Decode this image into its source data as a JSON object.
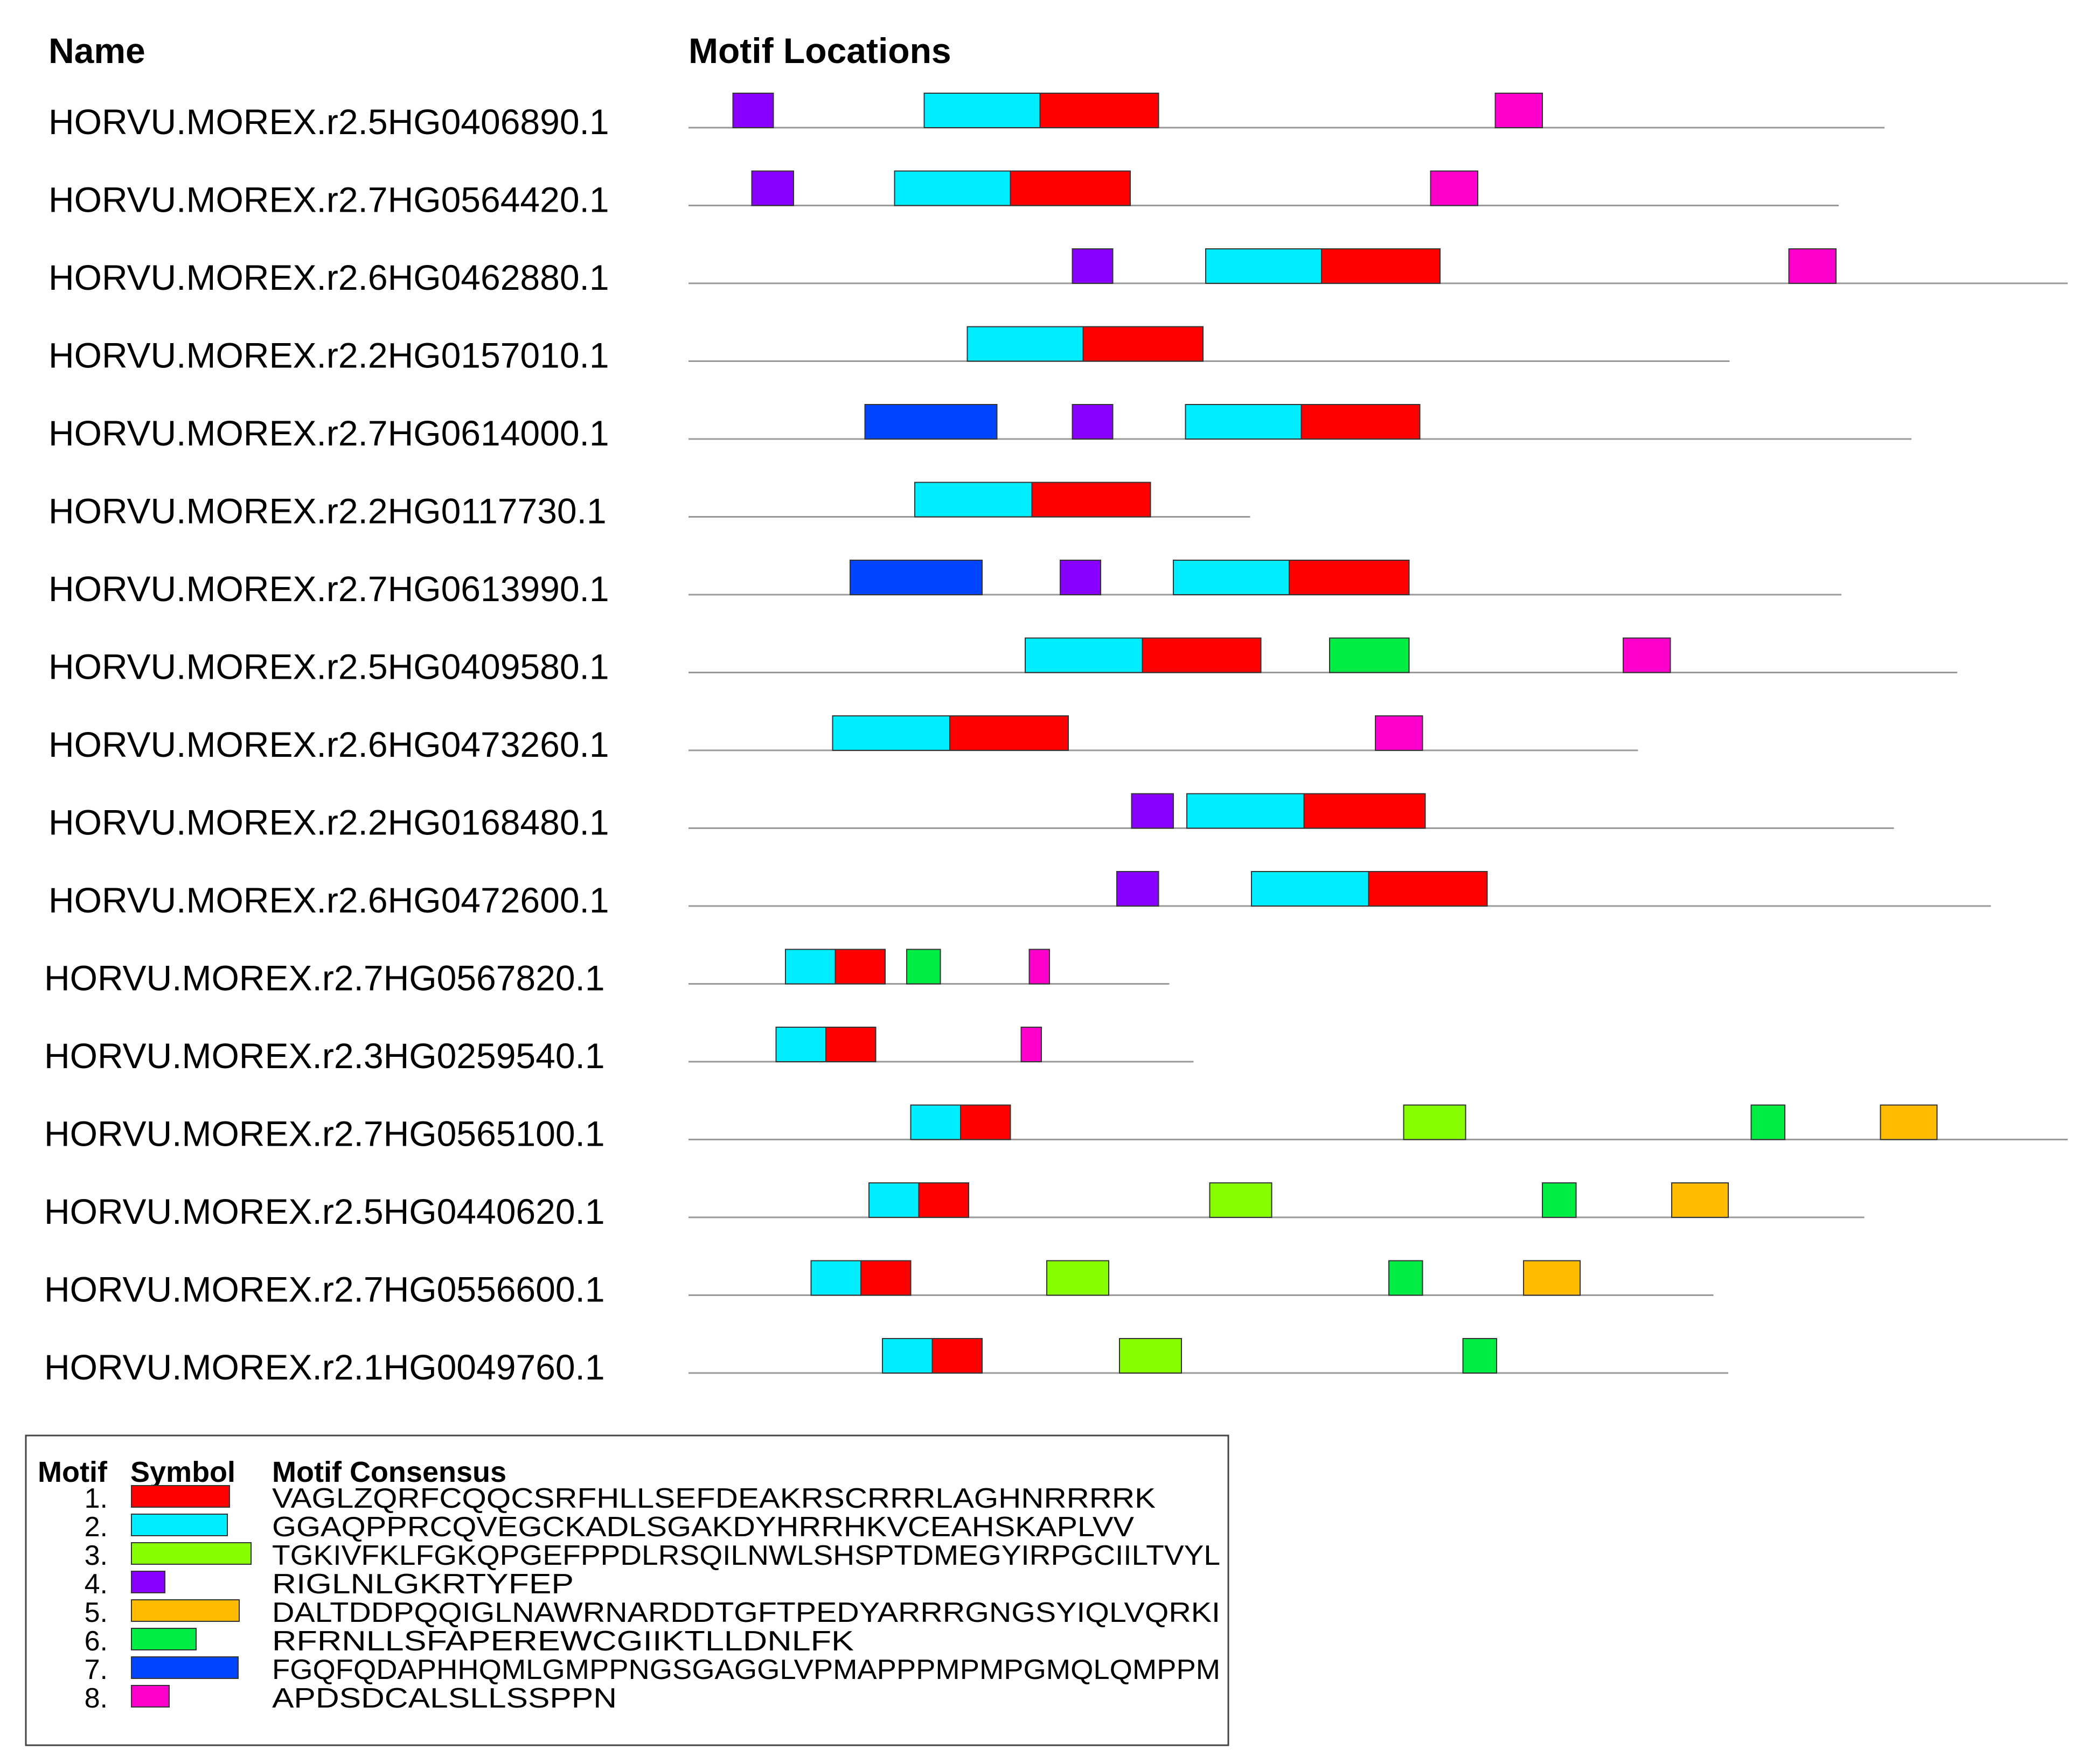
{
  "headers": {
    "name": "Name",
    "motif_locations": "Motif Locations"
  },
  "motifs": [
    {
      "num": "1.",
      "color": "#ff0000",
      "consensus": "VAGLZQRFCQQCSRFHLLSEFDEAKRSCRRRLAGHNRRRRK",
      "symbol_len": 182
    },
    {
      "num": "2.",
      "color": "#00eeff",
      "consensus": "GGAQPPRCQVEGCKADLSGAKDYHRRHKVCEAHSKAPLVV",
      "symbol_len": 178
    },
    {
      "num": "3.",
      "color": "#88ff00",
      "consensus": "TGKIVFKLFGKQPGEFPPDLRSQILNWLSHSPTDMEGYIRPGCIILTVYL",
      "symbol_len": 222
    },
    {
      "num": "4.",
      "color": "#8800ff",
      "consensus": "RIGLNLGKRTYFEP",
      "symbol_len": 62
    },
    {
      "num": "5.",
      "color": "#ffbb00",
      "consensus": "DALTDDPQQIGLNAWRNARDDTGFTPEDYARRRGNGSYIQLVQRKI",
      "symbol_len": 200
    },
    {
      "num": "6.",
      "color": "#00ee44",
      "consensus": "RFRNLLSFAPEREWCGIIKTLLDNLFK",
      "symbol_len": 120
    },
    {
      "num": "7.",
      "color": "#0044ff",
      "consensus": "FGQFQDAPHHQMLGMPPNGSGAGGLVPMAPPPMPMPGMQLQMPPM",
      "symbol_len": 198
    },
    {
      "num": "8.",
      "color": "#ff00cc",
      "consensus": "APDSDCALSLLSSPPN",
      "symbol_len": 70
    }
  ],
  "legend": {
    "col_motif": "Motif",
    "col_symbol": "Symbol",
    "col_consensus": "Motif Consensus"
  },
  "sequences": [
    {
      "name": "HORVU.MOREX.r2.5HG0406890.1",
      "length": 888,
      "motifs": [
        {
          "m": 4,
          "start": 33,
          "end": 63
        },
        {
          "m": 2,
          "start": 175,
          "end": 261
        },
        {
          "m": 1,
          "start": 261,
          "end": 349
        },
        {
          "m": 8,
          "start": 599,
          "end": 634
        }
      ]
    },
    {
      "name": "HORVU.MOREX.r2.7HG0564420.1",
      "length": 854,
      "motifs": [
        {
          "m": 4,
          "start": 47,
          "end": 78
        },
        {
          "m": 2,
          "start": 153,
          "end": 239
        },
        {
          "m": 1,
          "start": 239,
          "end": 328
        },
        {
          "m": 8,
          "start": 551,
          "end": 586
        }
      ]
    },
    {
      "name": "HORVU.MOREX.r2.6HG0462880.1",
      "length": 1024,
      "motifs": [
        {
          "m": 4,
          "start": 285,
          "end": 315
        },
        {
          "m": 2,
          "start": 384,
          "end": 470
        },
        {
          "m": 1,
          "start": 470,
          "end": 558
        },
        {
          "m": 8,
          "start": 817,
          "end": 852
        }
      ]
    },
    {
      "name": "HORVU.MOREX.r2.2HG0157010.1",
      "length": 773,
      "motifs": [
        {
          "m": 2,
          "start": 207,
          "end": 293
        },
        {
          "m": 1,
          "start": 293,
          "end": 382
        }
      ]
    },
    {
      "name": "HORVU.MOREX.r2.7HG0614000.1",
      "length": 908,
      "motifs": [
        {
          "m": 7,
          "start": 131,
          "end": 229
        },
        {
          "m": 4,
          "start": 285,
          "end": 315
        },
        {
          "m": 2,
          "start": 369,
          "end": 455
        },
        {
          "m": 1,
          "start": 455,
          "end": 543
        }
      ]
    },
    {
      "name": "HORVU.MOREX.r2.2HG0117730.1",
      "length": 417,
      "motifs": [
        {
          "m": 2,
          "start": 168,
          "end": 255
        },
        {
          "m": 1,
          "start": 255,
          "end": 343
        }
      ]
    },
    {
      "name": "HORVU.MOREX.r2.7HG0613990.1",
      "length": 856,
      "motifs": [
        {
          "m": 7,
          "start": 120,
          "end": 218
        },
        {
          "m": 4,
          "start": 276,
          "end": 306
        },
        {
          "m": 2,
          "start": 360,
          "end": 446
        },
        {
          "m": 1,
          "start": 446,
          "end": 535
        }
      ]
    },
    {
      "name": "HORVU.MOREX.r2.5HG0409580.1",
      "length": 942,
      "motifs": [
        {
          "m": 2,
          "start": 250,
          "end": 337
        },
        {
          "m": 1,
          "start": 337,
          "end": 425
        },
        {
          "m": 6,
          "start": 476,
          "end": 535
        },
        {
          "m": 8,
          "start": 694,
          "end": 729
        }
      ]
    },
    {
      "name": "HORVU.MOREX.r2.6HG0473260.1",
      "length": 705,
      "motifs": [
        {
          "m": 2,
          "start": 107,
          "end": 194
        },
        {
          "m": 1,
          "start": 194,
          "end": 282
        },
        {
          "m": 8,
          "start": 510,
          "end": 545
        }
      ]
    },
    {
      "name": "HORVU.MOREX.r2.2HG0168480.1",
      "length": 895,
      "motifs": [
        {
          "m": 4,
          "start": 329,
          "end": 360
        },
        {
          "m": 2,
          "start": 370,
          "end": 457
        },
        {
          "m": 1,
          "start": 457,
          "end": 547
        }
      ]
    },
    {
      "name": "HORVU.MOREX.r2.6HG0472600.1",
      "length": 967,
      "motifs": [
        {
          "m": 4,
          "start": 318,
          "end": 349
        },
        {
          "m": 2,
          "start": 418,
          "end": 505
        },
        {
          "m": 1,
          "start": 505,
          "end": 593
        }
      ]
    },
    {
      "name": "HORVU.MOREX.r2.7HG0567820.1",
      "length": 357,
      "motifs": [
        {
          "m": 2,
          "start": 72,
          "end": 109
        },
        {
          "m": 1,
          "start": 109,
          "end": 146
        },
        {
          "m": 6,
          "start": 162,
          "end": 187
        },
        {
          "m": 8,
          "start": 253,
          "end": 268
        }
      ]
    },
    {
      "name": "HORVU.MOREX.r2.3HG0259540.1",
      "length": 375,
      "motifs": [
        {
          "m": 2,
          "start": 65,
          "end": 102
        },
        {
          "m": 1,
          "start": 102,
          "end": 139
        },
        {
          "m": 8,
          "start": 247,
          "end": 262
        }
      ]
    },
    {
      "name": "HORVU.MOREX.r2.7HG0565100.1",
      "length": 1024,
      "motifs": [
        {
          "m": 2,
          "start": 165,
          "end": 202
        },
        {
          "m": 1,
          "start": 202,
          "end": 239
        },
        {
          "m": 3,
          "start": 531,
          "end": 577
        },
        {
          "m": 6,
          "start": 789,
          "end": 814
        },
        {
          "m": 5,
          "start": 885,
          "end": 927
        }
      ]
    },
    {
      "name": "HORVU.MOREX.r2.5HG0440620.1",
      "length": 873,
      "motifs": [
        {
          "m": 2,
          "start": 134,
          "end": 171
        },
        {
          "m": 1,
          "start": 171,
          "end": 208
        },
        {
          "m": 3,
          "start": 387,
          "end": 433
        },
        {
          "m": 6,
          "start": 634,
          "end": 659
        },
        {
          "m": 5,
          "start": 730,
          "end": 772
        }
      ]
    },
    {
      "name": "HORVU.MOREX.r2.7HG0556600.1",
      "length": 761,
      "motifs": [
        {
          "m": 2,
          "start": 91,
          "end": 128
        },
        {
          "m": 1,
          "start": 128,
          "end": 165
        },
        {
          "m": 3,
          "start": 266,
          "end": 312
        },
        {
          "m": 6,
          "start": 520,
          "end": 545
        },
        {
          "m": 5,
          "start": 620,
          "end": 662
        }
      ]
    },
    {
      "name": "HORVU.MOREX.r2.1HG0049760.1",
      "length": 772,
      "motifs": [
        {
          "m": 2,
          "start": 144,
          "end": 181
        },
        {
          "m": 1,
          "start": 181,
          "end": 218
        },
        {
          "m": 3,
          "start": 320,
          "end": 366
        },
        {
          "m": 6,
          "start": 575,
          "end": 600
        }
      ]
    }
  ]
}
